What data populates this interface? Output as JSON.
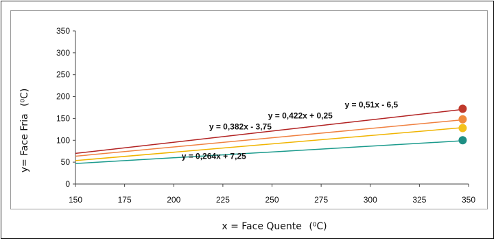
{
  "chart_data": {
    "type": "line",
    "xlabel": "x = Face Quente",
    "xlabel_unit": "(⁰C)",
    "ylabel": "y= Face Fria",
    "ylabel_unit": "(⁰C)",
    "xlim": [
      150,
      350
    ],
    "ylim": [
      0,
      350
    ],
    "xticks": [
      150,
      175,
      200,
      225,
      250,
      275,
      300,
      325,
      350
    ],
    "yticks": [
      0,
      50,
      100,
      150,
      200,
      250,
      300,
      350
    ],
    "grid": false,
    "series": [
      {
        "equation": "y = 0,51x - 6,5",
        "slope": 0.51,
        "intercept": -6.5,
        "x": [
          150,
          347
        ],
        "marker": {
          "x": 347,
          "y": 172
        },
        "color": "#b22222",
        "marker_color": "#c0392b",
        "label_pos": {
          "x": 287,
          "y": 175
        }
      },
      {
        "equation": "y = 0,422x + 0,25",
        "slope": 0.422,
        "intercept": 0.25,
        "x": [
          150,
          347
        ],
        "marker": {
          "x": 347,
          "y": 148
        },
        "color": "#f08040",
        "marker_color": "#f08a3c",
        "label_pos": {
          "x": 248,
          "y": 150
        }
      },
      {
        "equation": "y = 0,382x - 3,75",
        "slope": 0.382,
        "intercept": -3.75,
        "x": [
          150,
          347
        ],
        "marker": {
          "x": 347,
          "y": 128
        },
        "color": "#f0b400",
        "marker_color": "#f4c21a",
        "label_pos": {
          "x": 218,
          "y": 125
        }
      },
      {
        "equation": "y = 0,264x + 7,25",
        "slope": 0.264,
        "intercept": 7.25,
        "x": [
          150,
          347
        ],
        "marker": {
          "x": 347,
          "y": 100
        },
        "color": "#1a9a8c",
        "marker_color": "#1e8f84",
        "label_pos": {
          "x": 204,
          "y": 57
        }
      }
    ]
  }
}
